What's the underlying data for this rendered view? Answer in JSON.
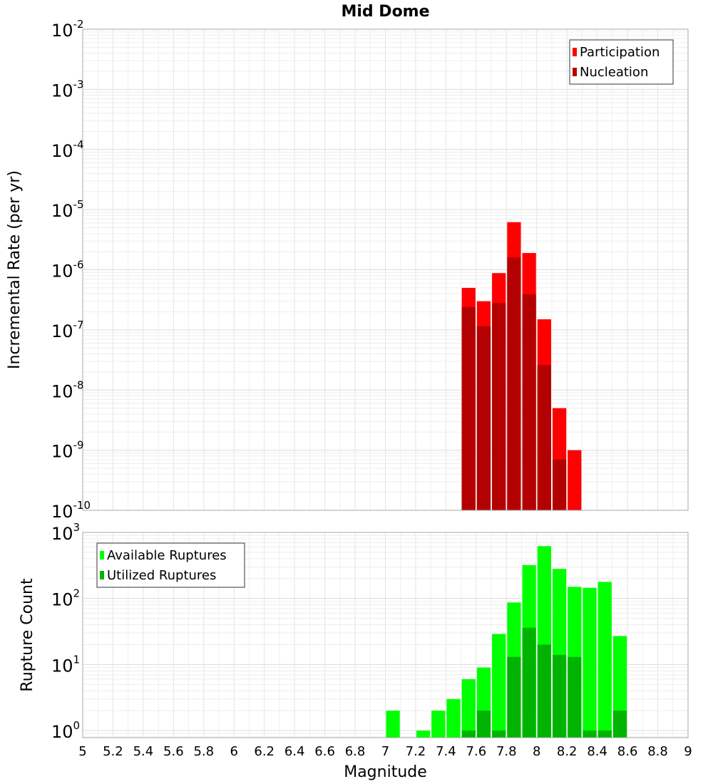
{
  "chart_data": [
    {
      "type": "bar",
      "title": "Mid Dome",
      "ylabel": "Incremental Rate (per yr)",
      "xlabel": "",
      "yscale": "log",
      "xlim": [
        5,
        9
      ],
      "ylim": [
        1e-10,
        0.01
      ],
      "grid": true,
      "legend_position": "top-right",
      "bin_width": 0.1,
      "y_tick_exponents": [
        "-10",
        "-9",
        "-8",
        "-7",
        "-6",
        "-5",
        "-4",
        "-3",
        "-2"
      ],
      "series": [
        {
          "name": "Participation",
          "color": "#ff0000",
          "x": [
            7.55,
            7.65,
            7.75,
            7.85,
            7.95,
            8.05,
            8.15,
            8.25
          ],
          "values": [
            5e-07,
            3e-07,
            8.8e-07,
            6.2e-06,
            1.9e-06,
            1.5e-07,
            5e-09,
            1e-09
          ]
        },
        {
          "name": "Nucleation",
          "color": "#b30000",
          "x": [
            7.55,
            7.65,
            7.75,
            7.85,
            7.95,
            8.05,
            8.15
          ],
          "values": [
            2.4e-07,
            1.15e-07,
            2.8e-07,
            1.6e-06,
            3.9e-07,
            2.6e-08,
            7e-10
          ]
        }
      ]
    },
    {
      "type": "bar",
      "title": "",
      "ylabel": "Rupture Count",
      "xlabel": "Magnitude",
      "yscale": "log",
      "xlim": [
        5,
        9
      ],
      "ylim": [
        0.78,
        1000
      ],
      "grid": true,
      "legend_position": "top-left",
      "bin_width": 0.1,
      "y_tick_exponents": [
        "0",
        "1",
        "2",
        "3"
      ],
      "x_ticks": [
        "5",
        "5.2",
        "5.4",
        "5.6",
        "5.8",
        "6",
        "6.2",
        "6.4",
        "6.6",
        "6.8",
        "7",
        "7.2",
        "7.4",
        "7.6",
        "7.8",
        "8",
        "8.2",
        "8.4",
        "8.6",
        "8.8",
        "9"
      ],
      "series": [
        {
          "name": "Available Ruptures",
          "color": "#00ff00",
          "x": [
            7.05,
            7.25,
            7.35,
            7.45,
            7.55,
            7.65,
            7.75,
            7.85,
            7.95,
            8.05,
            8.15,
            8.25,
            8.35,
            8.45,
            8.55
          ],
          "values": [
            2,
            1,
            2,
            3,
            6,
            9,
            29,
            87,
            320,
            620,
            280,
            150,
            145,
            178,
            27
          ]
        },
        {
          "name": "Utilized Ruptures",
          "color": "#00b300",
          "x": [
            7.55,
            7.65,
            7.75,
            7.85,
            7.95,
            8.05,
            8.15,
            8.25,
            8.35,
            8.45,
            8.55
          ],
          "values": [
            1,
            2,
            1,
            13,
            36,
            20,
            14,
            13,
            1,
            1,
            2
          ]
        }
      ]
    }
  ]
}
